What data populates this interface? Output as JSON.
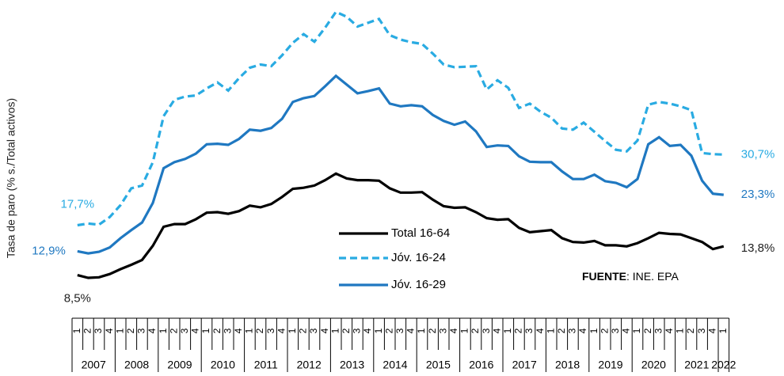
{
  "chart_data": {
    "type": "line",
    "y_label": "Tasa de paro (% s./Total activos)",
    "source": {
      "label": "FUENTE",
      "text": ": INE. EPA"
    },
    "categories": [
      "1",
      "2",
      "3",
      "4",
      "1",
      "2",
      "3",
      "4",
      "1",
      "2",
      "3",
      "4",
      "1",
      "2",
      "3",
      "4",
      "1",
      "2",
      "3",
      "4",
      "1",
      "2",
      "3",
      "4",
      "1",
      "2",
      "3",
      "4",
      "1",
      "2",
      "3",
      "4",
      "1",
      "2",
      "3",
      "4",
      "1",
      "2",
      "3",
      "4",
      "1",
      "2",
      "3",
      "4",
      "1",
      "2",
      "3",
      "4",
      "1",
      "2",
      "3",
      "4",
      "1",
      "2",
      "3",
      "4",
      "1",
      "2",
      "3",
      "4",
      "1"
    ],
    "years": [
      "2007",
      "2008",
      "2009",
      "2010",
      "2011",
      "2012",
      "2013",
      "2014",
      "2015",
      "2016",
      "2017",
      "2018",
      "2019",
      "2020",
      "2021",
      "2022"
    ],
    "series": [
      {
        "name": "Total 16-64",
        "color": "#000000",
        "dash": false,
        "values": [
          8.5,
          8.0,
          8.1,
          8.7,
          9.6,
          10.4,
          11.3,
          13.9,
          17.4,
          17.9,
          17.9,
          18.8,
          20.0,
          20.1,
          19.8,
          20.3,
          21.3,
          21.0,
          21.6,
          22.9,
          24.4,
          24.6,
          25.0,
          26.0,
          27.2,
          26.3,
          26.0,
          26.0,
          25.9,
          24.5,
          23.7,
          23.7,
          23.8,
          22.4,
          21.2,
          20.9,
          21.0,
          20.1,
          19.0,
          18.7,
          18.8,
          17.2,
          16.4,
          16.6,
          16.8,
          15.3,
          14.6,
          14.5,
          14.8,
          14.0,
          14.0,
          13.8,
          14.4,
          15.3,
          16.3,
          16.1,
          16.0,
          15.3,
          14.6,
          13.3,
          13.8
        ],
        "value_labels": [
          "8,5%",
          null,
          null,
          null,
          null,
          null,
          null,
          null,
          null,
          null,
          null,
          null,
          null,
          null,
          null,
          null,
          null,
          null,
          null,
          null,
          null,
          null,
          null,
          null,
          null,
          null,
          null,
          null,
          null,
          null,
          null,
          null,
          null,
          null,
          null,
          null,
          null,
          null,
          null,
          null,
          null,
          null,
          null,
          null,
          null,
          null,
          null,
          null,
          null,
          null,
          null,
          null,
          null,
          null,
          null,
          null,
          null,
          null,
          null,
          null,
          "13,8%"
        ]
      },
      {
        "name": "Jóv. 16-24",
        "color": "#29abe2",
        "dash": true,
        "values": [
          17.7,
          18.0,
          17.8,
          19.2,
          21.4,
          24.5,
          25.0,
          29.3,
          37.8,
          40.8,
          41.4,
          41.6,
          42.9,
          44.0,
          42.5,
          44.8,
          46.7,
          47.3,
          47.0,
          49.0,
          51.3,
          52.9,
          51.5,
          54.1,
          57.0,
          56.1,
          54.3,
          55.0,
          55.7,
          52.7,
          51.9,
          51.4,
          51.1,
          49.3,
          47.3,
          46.8,
          46.9,
          47.0,
          42.7,
          44.4,
          43.0,
          39.3,
          40.1,
          38.6,
          37.5,
          35.5,
          35.3,
          36.6,
          34.9,
          33.2,
          31.6,
          31.3,
          33.3,
          39.9,
          40.4,
          40.1,
          39.6,
          38.9,
          31.0,
          30.8,
          30.7
        ],
        "value_labels": [
          "17,7%",
          null,
          null,
          null,
          null,
          null,
          null,
          null,
          null,
          null,
          null,
          null,
          null,
          null,
          null,
          null,
          null,
          null,
          null,
          null,
          null,
          null,
          null,
          null,
          null,
          null,
          null,
          null,
          null,
          null,
          null,
          null,
          null,
          null,
          null,
          null,
          null,
          null,
          null,
          null,
          null,
          null,
          null,
          null,
          null,
          null,
          null,
          null,
          null,
          null,
          null,
          null,
          null,
          null,
          null,
          null,
          null,
          null,
          null,
          null,
          "30,7%"
        ]
      },
      {
        "name": "Jóv. 16-29",
        "color": "#1f78c1",
        "dash": false,
        "values": [
          12.9,
          12.5,
          12.8,
          13.6,
          15.3,
          16.8,
          18.2,
          21.8,
          28.2,
          29.3,
          29.9,
          30.9,
          32.6,
          32.7,
          32.5,
          33.6,
          35.3,
          35.1,
          35.6,
          37.3,
          40.4,
          41.1,
          41.5,
          43.3,
          45.2,
          43.6,
          42.0,
          42.4,
          42.9,
          40.1,
          39.6,
          39.8,
          39.6,
          38.0,
          36.9,
          36.2,
          36.8,
          35.0,
          32.1,
          32.4,
          32.3,
          30.4,
          29.4,
          29.3,
          29.3,
          27.6,
          26.2,
          26.2,
          27.0,
          25.8,
          25.5,
          24.7,
          26.2,
          32.6,
          33.9,
          32.3,
          32.5,
          30.5,
          25.9,
          23.5,
          23.3
        ],
        "value_labels": [
          "12,9%",
          null,
          null,
          null,
          null,
          null,
          null,
          null,
          null,
          null,
          null,
          null,
          null,
          null,
          null,
          null,
          null,
          null,
          null,
          null,
          null,
          null,
          null,
          null,
          null,
          null,
          null,
          null,
          null,
          null,
          null,
          null,
          null,
          null,
          null,
          null,
          null,
          null,
          null,
          null,
          null,
          null,
          null,
          null,
          null,
          null,
          null,
          null,
          null,
          null,
          null,
          null,
          null,
          null,
          null,
          null,
          null,
          null,
          null,
          null,
          "23,3%"
        ]
      }
    ]
  }
}
